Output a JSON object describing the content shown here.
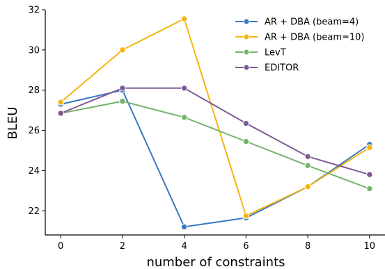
{
  "chart_data": {
    "type": "line",
    "xlabel": "number of constraints",
    "ylabel": "BLEU",
    "x": [
      0,
      2,
      4,
      6,
      8,
      10
    ],
    "xlim": [
      -0.5,
      10.5
    ],
    "ylim": [
      20.8,
      32
    ],
    "xticks": [
      0,
      2,
      4,
      6,
      8,
      10
    ],
    "yticks": [
      22,
      24,
      26,
      28,
      30,
      32
    ],
    "grid": false,
    "legend_position": "top-right",
    "series": [
      {
        "name": "AR + DBA (beam=4)",
        "color": "#3a78c2",
        "values": [
          27.3,
          28.0,
          21.2,
          21.65,
          23.2,
          25.3
        ]
      },
      {
        "name": "AR + DBA (beam=10)",
        "color": "#f5b50f",
        "values": [
          27.4,
          30.0,
          31.55,
          21.75,
          23.2,
          25.15
        ]
      },
      {
        "name": "LevT",
        "color": "#75b36d",
        "values": [
          26.85,
          27.45,
          26.65,
          25.45,
          24.25,
          23.1
        ]
      },
      {
        "name": "EDITOR",
        "color": "#7d5b92",
        "values": [
          26.85,
          28.1,
          28.1,
          26.35,
          24.7,
          23.8
        ]
      }
    ]
  }
}
